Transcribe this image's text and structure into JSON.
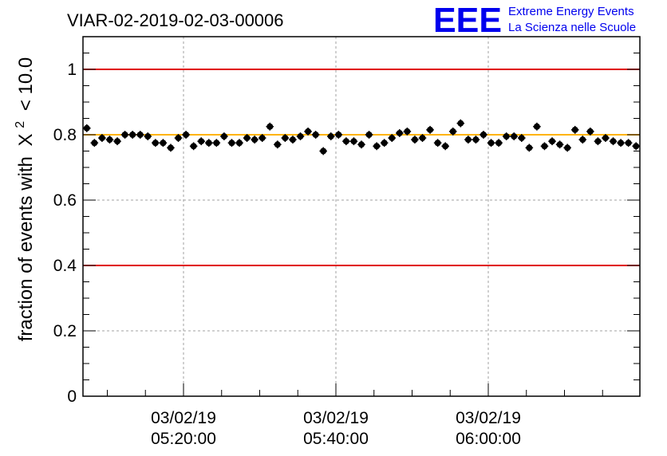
{
  "chart_data": {
    "type": "scatter",
    "title": "VIAR-02-2019-02-03-00006",
    "ylabel_prefix": "fraction of events with",
    "ylabel_symbol": "X",
    "ylabel_sup": "2",
    "ylabel_suffix": "< 10.0",
    "ylim": [
      0,
      1.1
    ],
    "y_ticks": [
      "0",
      "0.2",
      "0.4",
      "0.6",
      "0.8",
      "1"
    ],
    "x_ticks": [
      {
        "date": "03/02/19",
        "time": "05:20:00"
      },
      {
        "date": "03/02/19",
        "time": "05:40:00"
      },
      {
        "date": "03/02/19",
        "time": "06:00:00"
      }
    ],
    "grid": true,
    "reference_lines": [
      {
        "y": 1.0,
        "color": "#e00000"
      },
      {
        "y": 0.4,
        "color": "#e00000"
      },
      {
        "y": 0.8,
        "color": "#ffb400"
      }
    ],
    "series": [
      {
        "marker_color": "#000000",
        "values": [
          0.82,
          0.775,
          0.79,
          0.785,
          0.78,
          0.8,
          0.8,
          0.8,
          0.795,
          0.775,
          0.775,
          0.76,
          0.79,
          0.8,
          0.765,
          0.78,
          0.775,
          0.775,
          0.795,
          0.775,
          0.775,
          0.79,
          0.785,
          0.79,
          0.825,
          0.77,
          0.79,
          0.785,
          0.795,
          0.81,
          0.8,
          0.75,
          0.795,
          0.8,
          0.78,
          0.78,
          0.77,
          0.8,
          0.765,
          0.775,
          0.79,
          0.805,
          0.81,
          0.785,
          0.79,
          0.815,
          0.775,
          0.765,
          0.81,
          0.835,
          0.785,
          0.785,
          0.8,
          0.775,
          0.775,
          0.795,
          0.795,
          0.79,
          0.76,
          0.825,
          0.765,
          0.78,
          0.77,
          0.76,
          0.815,
          0.785,
          0.81,
          0.78,
          0.79,
          0.78,
          0.775,
          0.775,
          0.765
        ],
        "errors": [
          0.012,
          0.012,
          0.012,
          0.012,
          0.012,
          0.012,
          0.012,
          0.012,
          0.012,
          0.012,
          0.012,
          0.012,
          0.012,
          0.012,
          0.012,
          0.012,
          0.012,
          0.012,
          0.012,
          0.012,
          0.012,
          0.012,
          0.012,
          0.012,
          0.012,
          0.012,
          0.012,
          0.012,
          0.012,
          0.012,
          0.012,
          0.012,
          0.012,
          0.012,
          0.012,
          0.012,
          0.012,
          0.012,
          0.012,
          0.012,
          0.012,
          0.012,
          0.012,
          0.012,
          0.012,
          0.012,
          0.012,
          0.012,
          0.012,
          0.012,
          0.012,
          0.012,
          0.012,
          0.012,
          0.012,
          0.012,
          0.012,
          0.012,
          0.012,
          0.012,
          0.012,
          0.012,
          0.012,
          0.012,
          0.012,
          0.012,
          0.012,
          0.012,
          0.012,
          0.012,
          0.012,
          0.012,
          0.012
        ]
      }
    ]
  },
  "logo": {
    "mark": "EEE",
    "line1": "Extreme Energy Events",
    "line2": "La Scienza nelle Scuole",
    "color": "#0000ee"
  }
}
